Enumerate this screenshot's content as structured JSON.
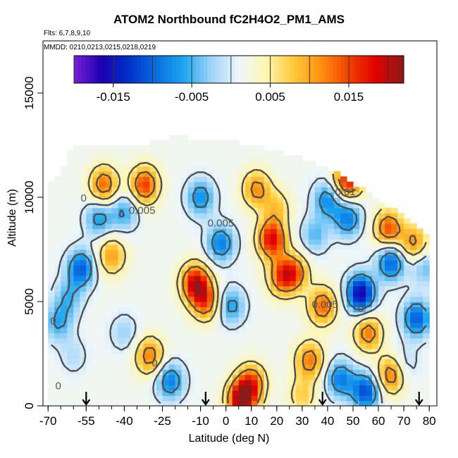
{
  "chart_data": {
    "type": "heatmap",
    "title": "ATOM2 Northbound fC2H4O2_PM1_AMS",
    "subtitle_flights": "Flts: 6,7,8,9,10",
    "subtitle_dates": "MMDD: 0210,0213,0215,0218,0219",
    "xlabel": "Latitude (deg N)",
    "ylabel": "Altitude (m)",
    "xlim": [
      -72,
      83
    ],
    "ylim": [
      0,
      17500
    ],
    "x_ticks": [
      -70,
      -55,
      -40,
      -25,
      -10,
      0,
      10,
      20,
      30,
      40,
      50,
      60,
      70,
      80
    ],
    "y_ticks": [
      0,
      5000,
      10000,
      15000
    ],
    "colorbar": {
      "min": -0.02,
      "max": 0.022,
      "tick_values": [
        -0.015,
        -0.005,
        0.005,
        0.015
      ],
      "tick_labels": [
        "-0.015",
        "-0.005",
        "0.005",
        "0.015"
      ],
      "colors": [
        "#7a1fd6",
        "#1c00b0",
        "#0030c8",
        "#0a6ee0",
        "#1ea6f0",
        "#9fd4f8",
        "#eef6fa",
        "#fff6b0",
        "#ffc838",
        "#ff9010",
        "#f04000",
        "#e00000",
        "#8b1a1a"
      ]
    },
    "contour_levels": [
      0,
      0.005,
      0.01,
      -0.005
    ],
    "contour_labels": [
      {
        "lat": -56,
        "alt": 9800,
        "text": "0"
      },
      {
        "lat": -33,
        "alt": 9200,
        "text": "0.005"
      },
      {
        "lat": -2,
        "alt": 8600,
        "text": "0.005"
      },
      {
        "lat": 47,
        "alt": 10100,
        "text": "0.01"
      },
      {
        "lat": 39,
        "alt": 4700,
        "text": "0.005"
      },
      {
        "lat": -68,
        "alt": 3900,
        "text": "0"
      },
      {
        "lat": 53,
        "alt": 4500,
        "text": "0"
      },
      {
        "lat": -28,
        "alt": 1900,
        "text": "0"
      },
      {
        "lat": -66,
        "alt": 800,
        "text": "0"
      }
    ],
    "data_coverage": {
      "lat_range": [
        -70,
        80
      ],
      "alt_top_profile": [
        [
          -70,
          10500
        ],
        [
          -65,
          11000
        ],
        [
          -60,
          12500
        ],
        [
          -30,
          12500
        ],
        [
          -20,
          12800
        ],
        [
          5,
          12500
        ],
        [
          30,
          11800
        ],
        [
          45,
          11000
        ],
        [
          60,
          9800
        ],
        [
          75,
          8600
        ],
        [
          80,
          8000
        ]
      ]
    },
    "cells": [
      {
        "lat": -57,
        "alt": 6600,
        "value": -0.012
      },
      {
        "lat": -50,
        "alt": 9000,
        "value": -0.008
      },
      {
        "lat": -40,
        "alt": 9300,
        "value": -0.007
      },
      {
        "lat": -32,
        "alt": 10600,
        "value": 0.014
      },
      {
        "lat": -48,
        "alt": 10600,
        "value": 0.012
      },
      {
        "lat": -62,
        "alt": 5200,
        "value": -0.006
      },
      {
        "lat": -66,
        "alt": 4000,
        "value": -0.007
      },
      {
        "lat": -40,
        "alt": 3500,
        "value": -0.004
      },
      {
        "lat": -30,
        "alt": 2400,
        "value": 0.011
      },
      {
        "lat": -22,
        "alt": 1200,
        "value": -0.01
      },
      {
        "lat": -12,
        "alt": 5900,
        "value": 0.018
      },
      {
        "lat": -8,
        "alt": 5000,
        "value": 0.012
      },
      {
        "lat": -10,
        "alt": 10000,
        "value": -0.009
      },
      {
        "lat": -2,
        "alt": 7800,
        "value": -0.01
      },
      {
        "lat": 2,
        "alt": 4800,
        "value": -0.008
      },
      {
        "lat": 6,
        "alt": 300,
        "value": 0.02
      },
      {
        "lat": 10,
        "alt": 1100,
        "value": 0.013
      },
      {
        "lat": 12,
        "alt": 10400,
        "value": 0.01
      },
      {
        "lat": 18,
        "alt": 8000,
        "value": 0.017
      },
      {
        "lat": 22,
        "alt": 6200,
        "value": 0.012
      },
      {
        "lat": 27,
        "alt": 6400,
        "value": 0.011
      },
      {
        "lat": 33,
        "alt": 2200,
        "value": 0.011
      },
      {
        "lat": 38,
        "alt": 4800,
        "value": 0.012
      },
      {
        "lat": 40,
        "alt": 9900,
        "value": -0.009
      },
      {
        "lat": 48,
        "alt": 10800,
        "value": 0.016
      },
      {
        "lat": 48,
        "alt": 9000,
        "value": -0.01
      },
      {
        "lat": 53,
        "alt": 5400,
        "value": -0.018
      },
      {
        "lat": 56,
        "alt": 3500,
        "value": 0.011
      },
      {
        "lat": 45,
        "alt": 1300,
        "value": -0.01
      },
      {
        "lat": 55,
        "alt": 700,
        "value": -0.013
      },
      {
        "lat": 65,
        "alt": 1500,
        "value": 0.012
      },
      {
        "lat": 65,
        "alt": 6900,
        "value": -0.012
      },
      {
        "lat": 64,
        "alt": 8500,
        "value": 0.013
      },
      {
        "lat": 75,
        "alt": 4200,
        "value": -0.012
      },
      {
        "lat": 74,
        "alt": 7800,
        "value": 0.01
      },
      {
        "lat": 78,
        "alt": 6700,
        "value": -0.006
      },
      {
        "lat": 70,
        "alt": 2000,
        "value": -0.004
      },
      {
        "lat": 30,
        "alt": 500,
        "value": 0.006
      },
      {
        "lat": -45,
        "alt": 7200,
        "value": 0.009
      },
      {
        "lat": 20,
        "alt": 9500,
        "value": 0.006
      },
      {
        "lat": 35,
        "alt": 8200,
        "value": -0.006
      },
      {
        "lat": -60,
        "alt": 2400,
        "value": -0.003
      }
    ],
    "arrows": [
      -55,
      -8,
      38,
      76
    ]
  }
}
